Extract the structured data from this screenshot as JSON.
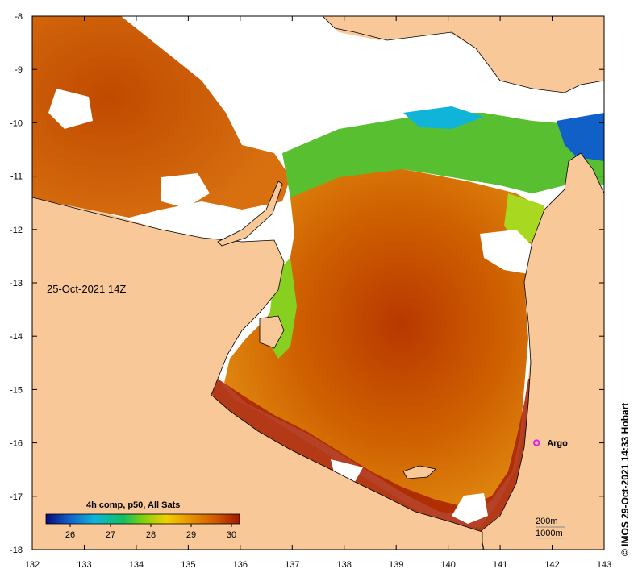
{
  "map": {
    "date_label": "25-Oct-2021 14Z",
    "credit": "© IMOS 29-Oct-2021 14:33 Hobart",
    "x_ticks": [
      "132",
      "133",
      "134",
      "135",
      "136",
      "137",
      "138",
      "139",
      "140",
      "141",
      "142",
      "143"
    ],
    "y_ticks": [
      "-8",
      "-9",
      "-10",
      "-11",
      "-12",
      "-13",
      "-14",
      "-15",
      "-16",
      "-17",
      "-18"
    ],
    "lon_range": [
      132,
      143
    ],
    "lat_range": [
      -18,
      -8
    ],
    "colorbar": {
      "title": "4h comp, p50, All Sats",
      "labels": [
        "26",
        "27",
        "28",
        "29",
        "30"
      ],
      "range": [
        25.4,
        30.2
      ],
      "colors": [
        "#0a0a7a",
        "#1060c8",
        "#10b4d8",
        "#10c060",
        "#80d010",
        "#f0d000",
        "#e89000",
        "#d05800",
        "#a01800"
      ]
    },
    "argo": {
      "label": "Argo",
      "lon": 141.7,
      "lat": -16.0,
      "color": "#e020e0"
    },
    "isobaths": [
      "200m",
      "1000m"
    ],
    "colors": {
      "land": "#f8c898",
      "no_data": "#ffffff",
      "sst_hot": "#b83000",
      "sst_warm": "#d86a00",
      "sst_mid": "#e89010"
    }
  }
}
